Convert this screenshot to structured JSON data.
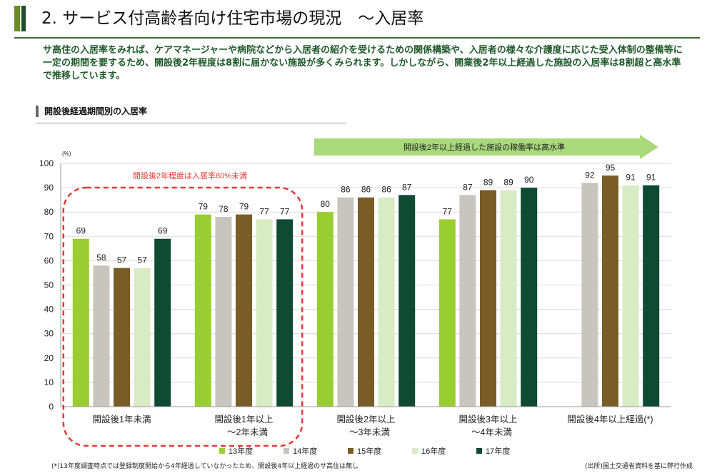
{
  "page": {
    "title": "2. サービス付高齢者向け住宅市場の現況　～入居率",
    "summary": "サ高住の入居率をみれば、ケアマネージャーや病院などから入居者の紹介を受けるための関係構築や、入居者の様々な介護度に応じた受入体制の整備等に一定の期間を要するため、開設後2年程度は8割に届かない施設が多くみられます。しかしながら、開業後2年以上経過した施設の入居率は8割超と高水準で推移しています。",
    "section_label": "開設後経過期間別の入居率",
    "footnote": "(*)13年度調査時点では登録制度開始から4年経過していなかったため、開設後4年以上経過のサ高住は無し",
    "source": "(出所)国土交通省資料を基に弊行作成"
  },
  "chart_data": {
    "type": "bar",
    "ylabel": "(%)",
    "ylim": [
      0,
      100
    ],
    "yticks": [
      0,
      10,
      20,
      30,
      40,
      50,
      60,
      70,
      80,
      90,
      100
    ],
    "grid": true,
    "legend_position": "bottom",
    "categories": [
      [
        "開設後1年未満"
      ],
      [
        "開設後1年以上",
        "～2年未満"
      ],
      [
        "開設後2年以上",
        "～3年未満"
      ],
      [
        "開設後3年以上",
        "～4年未満"
      ],
      [
        "開設後4年以上経過(*)"
      ]
    ],
    "series": [
      {
        "name": "13年度",
        "color": "#9acd32",
        "values": [
          69,
          79,
          80,
          77,
          null
        ]
      },
      {
        "name": "14年度",
        "color": "#c8c5bf",
        "values": [
          58,
          78,
          86,
          87,
          92
        ]
      },
      {
        "name": "15年度",
        "color": "#7a5c28",
        "values": [
          57,
          79,
          86,
          89,
          95
        ]
      },
      {
        "name": "16年度",
        "color": "#d7ecc4",
        "values": [
          57,
          77,
          86,
          89,
          91
        ]
      },
      {
        "name": "17年度",
        "color": "#0f4a32",
        "values": [
          69,
          77,
          87,
          90,
          91
        ]
      }
    ],
    "annotations": {
      "low_label": "開設後2年程度は入居率80%未満",
      "low_color": "#e53935",
      "high_label": "開設後2年以上経過した施設の稼働率は高水準",
      "high_color": "#a8d97a"
    }
  }
}
